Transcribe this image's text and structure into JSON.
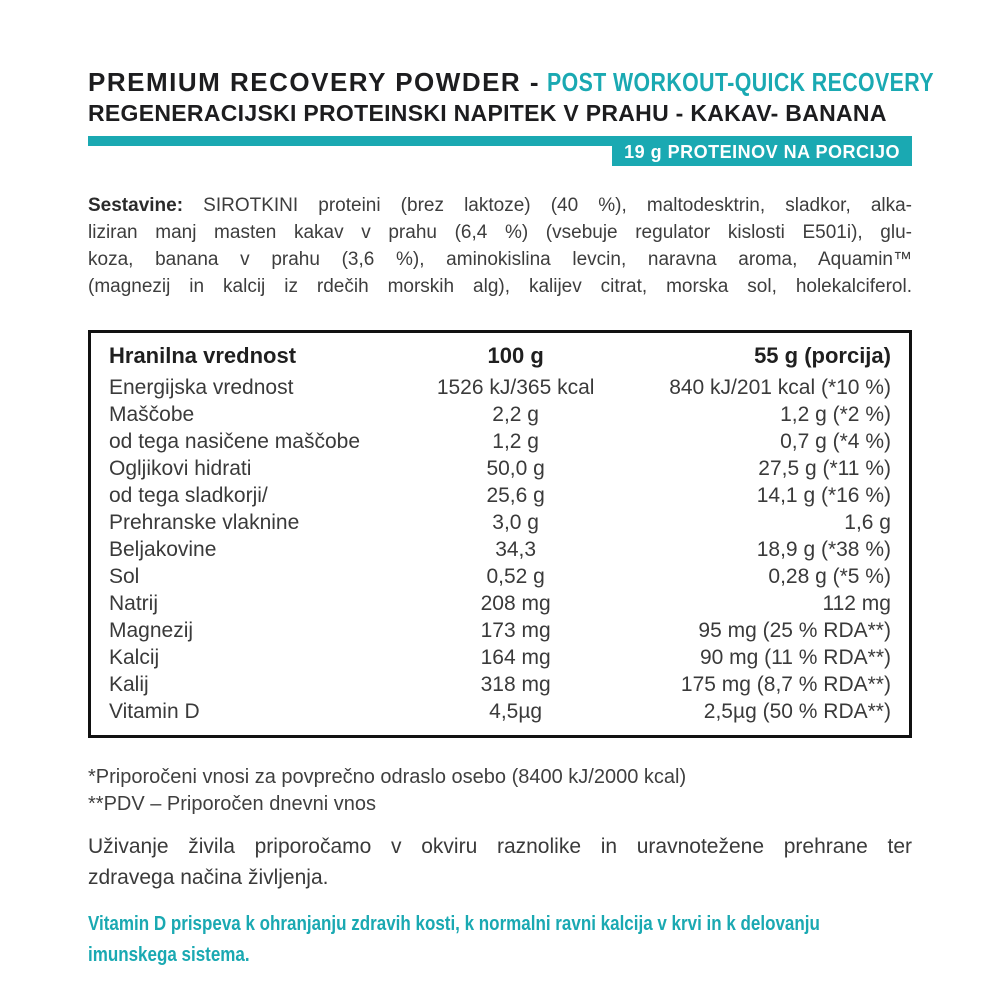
{
  "colors": {
    "teal": "#1aa9b2",
    "heading": "#1d1d1f",
    "body_text": "#3a3a3a"
  },
  "header": {
    "title_black": "PREMIUM RECOVERY POWDER -",
    "title_teal": "POST WORKOUT-QUICK RECOVERY",
    "subtitle": "REGENERACIJSKI PROTEINSKI NAPITEK V PRAHU - KAKAV- BANANA",
    "badge": "19 g PROTEINOV NA PORCIJO"
  },
  "ingredients": {
    "label": "Sestavine:",
    "lines": [
      "SIROTKINI proteini (brez laktoze) (40 %), maltodesktrin, sladkor, alka-",
      "liziran manj masten kakav v prahu (6,4 %) (vsebuje regulator kislosti E501i), glu-",
      "koza, banana v prahu (3,6 %), aminokislina levcin, naravna aroma, Aquamin™",
      "(magnezij in kalcij iz rdečih morskih alg), kalijev citrat, morska sol, holekalciferol."
    ]
  },
  "table": {
    "headers": {
      "col1": "Hranilna vrednost",
      "col2": "100 g",
      "col3": "55 g (porcija)"
    },
    "rows": [
      {
        "label": "Energijska vrednost",
        "per100": "1526 kJ/365 kcal",
        "portion": "840 kJ/201 kcal (*10 %)"
      },
      {
        "label": "Maščobe",
        "per100": "2,2 g",
        "portion": "1,2 g (*2 %)"
      },
      {
        "label": "od tega nasičene maščobe",
        "per100": "1,2 g",
        "portion": "0,7 g (*4 %)"
      },
      {
        "label": "Ogljikovi hidrati",
        "per100": "50,0 g",
        "portion": "27,5 g (*11 %)"
      },
      {
        "label": "od tega sladkorji/",
        "per100": "25,6 g",
        "portion": "14,1 g (*16 %)"
      },
      {
        "label": "Prehranske vlaknine",
        "per100": "3,0 g",
        "portion": "1,6 g"
      },
      {
        "label": "Beljakovine",
        "per100": "34,3",
        "portion": "18,9 g (*38 %)"
      },
      {
        "label": "Sol",
        "per100": "0,52 g",
        "portion": "0,28 g (*5 %)"
      },
      {
        "label": "Natrij",
        "per100": "208 mg",
        "portion": "112 mg"
      },
      {
        "label": "Magnezij",
        "per100": "173 mg",
        "portion": "95 mg (25 % RDA**)"
      },
      {
        "label": "Kalcij",
        "per100": "164 mg",
        "portion": "90 mg (11 % RDA**)"
      },
      {
        "label": "Kalij",
        "per100": "318 mg",
        "portion": "175 mg (8,7 % RDA**)"
      },
      {
        "label": "Vitamin D",
        "per100": "4,5µg",
        "portion": "2,5µg (50 % RDA**)"
      }
    ]
  },
  "footnotes": {
    "line1": "*Priporočeni vnosi za povprečno odraslo osebo (8400 kJ/2000 kcal)",
    "line2": "**PDV – Priporočen dnevni vnos"
  },
  "advice": {
    "lines": [
      "Uživanje živila priporočamo v okviru raznolike in uravnotežene prehrane ter",
      "zdravega načina življenja."
    ]
  },
  "claim": {
    "lines": [
      "Vitamin D prispeva k ohranjanju zdravih kosti, k normalni ravni kalcija v krvi in k delovanju",
      "imunskega sistema."
    ]
  }
}
